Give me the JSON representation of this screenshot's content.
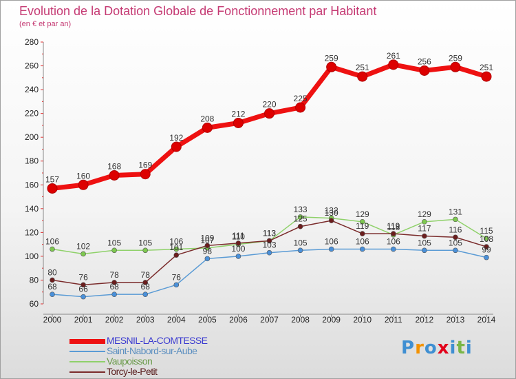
{
  "title": "Evolution de la Dotation Globale de Fonctionnement par Habitant",
  "subtitle": "(en € et par an)",
  "logo": {
    "letters": [
      {
        "ch": "P",
        "color": "#3f8fd2"
      },
      {
        "ch": "r",
        "color": "#f39200"
      },
      {
        "ch": "o",
        "color": "#3f8fd2"
      },
      {
        "ch": "x",
        "color": "#e2001a"
      },
      {
        "ch": "i",
        "color": "#3f8fd2"
      },
      {
        "ch": "t",
        "color": "#7ab648"
      },
      {
        "ch": "i",
        "color": "#3f8fd2"
      }
    ]
  },
  "chart_data": {
    "type": "line",
    "title": "Evolution de la Dotation Globale de Fonctionnement par Habitant",
    "subtitle": "(en € et par an)",
    "x": [
      "2000",
      "2001",
      "2002",
      "2003",
      "2004",
      "2005",
      "2006",
      "2007",
      "2008",
      "2009",
      "2010",
      "2011",
      "2012",
      "2013",
      "2014"
    ],
    "ylim": [
      60,
      280
    ],
    "yticks": [
      60,
      80,
      100,
      120,
      140,
      160,
      180,
      200,
      220,
      240,
      260,
      280
    ],
    "grid": false,
    "legend_position": "bottom-left",
    "series": [
      {
        "name": "MESNIL-LA-COMTESSE",
        "color": "#ee1111",
        "marker": "#dd0000",
        "values": [
          157,
          160,
          168,
          169,
          192,
          208,
          212,
          220,
          225,
          259,
          251,
          261,
          256,
          259,
          251
        ]
      },
      {
        "name": "Saint-Nabord-sur-Aube",
        "color": "#5a9bd5",
        "marker": "#4a90d9",
        "values": [
          68,
          66,
          68,
          68,
          76,
          98,
          100,
          103,
          105,
          106,
          106,
          106,
          105,
          105,
          99
        ]
      },
      {
        "name": "Vaupoisson",
        "color": "#8fd16a",
        "marker": "#7ec850",
        "values": [
          106,
          102,
          105,
          105,
          106,
          107,
          110,
          113,
          133,
          132,
          129,
          118,
          129,
          131,
          115
        ]
      },
      {
        "name": "Torcy-le-Petit",
        "color": "#7a2b2b",
        "marker": "#6b1d1d",
        "values": [
          80,
          76,
          78,
          78,
          101,
          109,
          111,
          113,
          125,
          130,
          119,
          119,
          117,
          116,
          108
        ]
      }
    ],
    "data_labels": [
      [
        "157",
        "160",
        "168",
        "169",
        "192",
        "208",
        "212",
        "220",
        "225",
        "259",
        "251",
        "261",
        "256",
        "259",
        "251"
      ],
      [
        "68",
        "66",
        "68",
        "68",
        "76",
        "98",
        "100",
        "103",
        "105",
        "106",
        "106",
        "106",
        "105",
        "105",
        "99"
      ],
      [
        "106",
        "102",
        "105",
        "105",
        "106",
        "107",
        "110",
        "113",
        "133",
        "132",
        "129",
        "118",
        "129",
        "131",
        "115"
      ],
      [
        "80",
        "76",
        "78",
        "78",
        "101",
        "109",
        "111",
        "113",
        "125",
        "130",
        "119",
        "119",
        "117",
        "116",
        "108"
      ]
    ]
  }
}
